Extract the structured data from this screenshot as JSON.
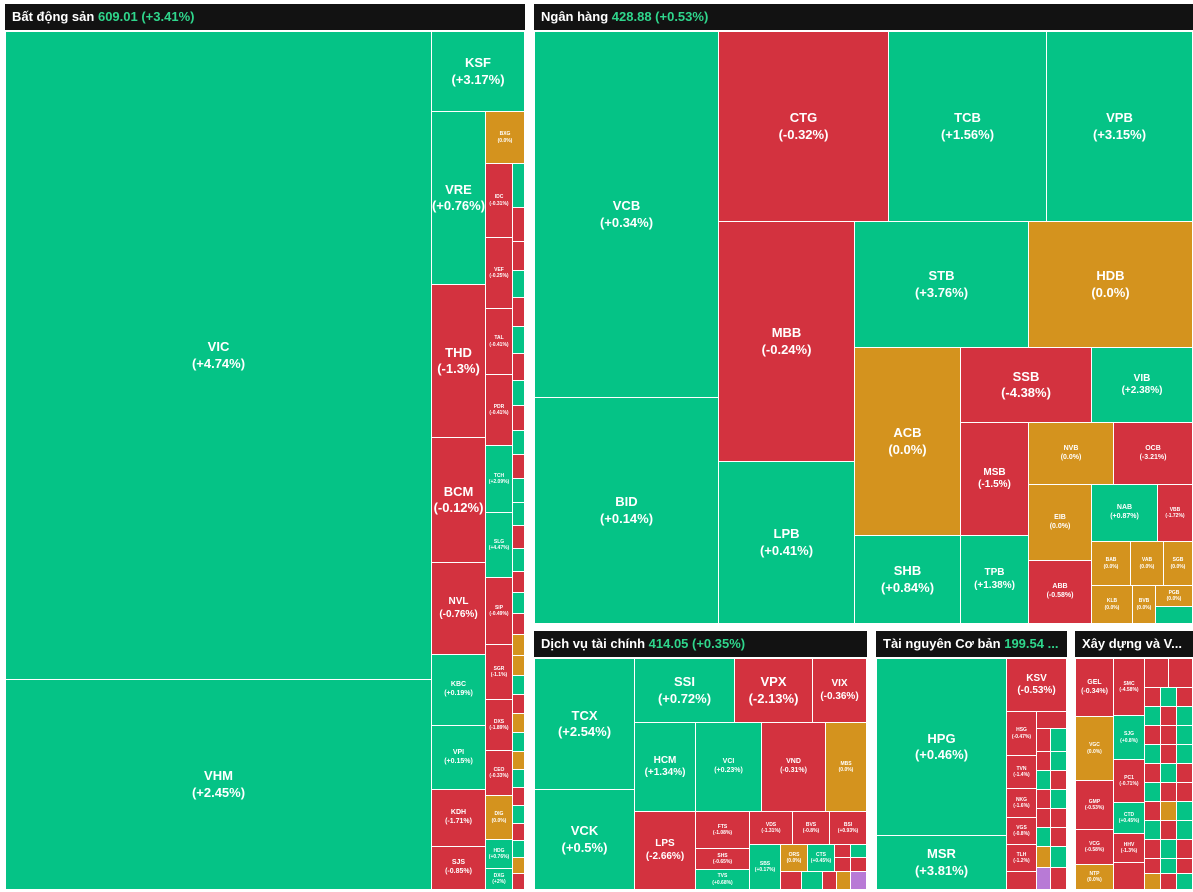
{
  "colors": {
    "up": "#05c386",
    "down": "#d3323f",
    "flat": "#d4931e",
    "header_bg": "#121212",
    "header_value": "#2fd68c"
  },
  "sectors": [
    {
      "name": "Bất động sản",
      "value": "609.01 (+3.41%)"
    },
    {
      "name": "Ngân hàng",
      "value": "428.88 (+0.53%)"
    },
    {
      "name": "Dịch vụ tài chính",
      "value": "414.05 (+0.35%)"
    },
    {
      "name": "Tài nguyên Cơ bản",
      "value": "199.54 ..."
    },
    {
      "name": "Xây dựng và V...",
      "value": ""
    }
  ],
  "tiles": [
    {
      "t": "VIC",
      "p": "(+4.74%)",
      "c": "g"
    },
    {
      "t": "VHM",
      "p": "(+2.45%)",
      "c": "g"
    },
    {
      "t": "KSF",
      "p": "(+3.17%)",
      "c": "g"
    },
    {
      "t": "VRE",
      "p": "(+0.76%)",
      "c": "g"
    },
    {
      "t": "THD",
      "p": "(-1.3%)",
      "c": "r"
    },
    {
      "t": "BCM",
      "p": "(-0.12%)",
      "c": "r"
    },
    {
      "t": "NVL",
      "p": "(-0.76%)",
      "c": "r"
    },
    {
      "t": "KBC",
      "p": "(+0.19%)",
      "c": "g"
    },
    {
      "t": "VPI",
      "p": "(+0.15%)",
      "c": "g"
    },
    {
      "t": "KDH",
      "p": "(-1.71%)",
      "c": "r"
    },
    {
      "t": "SJS",
      "p": "(-0.85%)",
      "c": "r"
    },
    {
      "t": "BXG",
      "p": "(0.0%)",
      "c": "y"
    },
    {
      "t": "IDC",
      "p": "(-0.31%)",
      "c": "r"
    },
    {
      "t": "VEF",
      "p": "(-0.25%)",
      "c": "r"
    },
    {
      "t": "TAL",
      "p": "(-0.41%)",
      "c": "r"
    },
    {
      "t": "PDR",
      "p": "(-0.41%)",
      "c": "r"
    },
    {
      "t": "TCH",
      "p": "(+2.09%)",
      "c": "g"
    },
    {
      "t": "SLG",
      "p": "(+4.47%)",
      "c": "g"
    },
    {
      "t": "SIP",
      "p": "(-0.49%)",
      "c": "r"
    },
    {
      "t": "SGR",
      "p": "(-1.1%)",
      "c": "r"
    },
    {
      "t": "DXS",
      "p": "(-1.89%)",
      "c": "r"
    },
    {
      "t": "CEO",
      "p": "(-0.33%)",
      "c": "r"
    },
    {
      "t": "DIG",
      "p": "(0.0%)",
      "c": "y"
    },
    {
      "t": "HDG",
      "p": "(+0.76%)",
      "c": "g"
    },
    {
      "t": "DXG",
      "p": "(+2%)",
      "c": "g"
    },
    {
      "t": "VCB",
      "p": "(+0.34%)",
      "c": "g"
    },
    {
      "t": "BID",
      "p": "(+0.14%)",
      "c": "g"
    },
    {
      "t": "CTG",
      "p": "(-0.32%)",
      "c": "r"
    },
    {
      "t": "TCB",
      "p": "(+1.56%)",
      "c": "g"
    },
    {
      "t": "VPB",
      "p": "(+3.15%)",
      "c": "g"
    },
    {
      "t": "MBB",
      "p": "(-0.24%)",
      "c": "r"
    },
    {
      "t": "STB",
      "p": "(+3.76%)",
      "c": "g"
    },
    {
      "t": "HDB",
      "p": "(0.0%)",
      "c": "y"
    },
    {
      "t": "LPB",
      "p": "(+0.41%)",
      "c": "g"
    },
    {
      "t": "ACB",
      "p": "(0.0%)",
      "c": "y"
    },
    {
      "t": "SSB",
      "p": "(-4.38%)",
      "c": "r"
    },
    {
      "t": "VIB",
      "p": "(+2.38%)",
      "c": "g"
    },
    {
      "t": "MSB",
      "p": "(-1.5%)",
      "c": "r"
    },
    {
      "t": "NVB",
      "p": "(0.0%)",
      "c": "y"
    },
    {
      "t": "OCB",
      "p": "(-3.21%)",
      "c": "r"
    },
    {
      "t": "EIB",
      "p": "(0.0%)",
      "c": "y"
    },
    {
      "t": "NAB",
      "p": "(+0.87%)",
      "c": "g"
    },
    {
      "t": "VBB",
      "p": "(-1.72%)",
      "c": "r"
    },
    {
      "t": "SHB",
      "p": "(+0.84%)",
      "c": "g"
    },
    {
      "t": "TPB",
      "p": "(+1.38%)",
      "c": "g"
    },
    {
      "t": "ABB",
      "p": "(-0.58%)",
      "c": "r"
    },
    {
      "t": "BAB",
      "p": "(0.0%)",
      "c": "y"
    },
    {
      "t": "VAB",
      "p": "(0.0%)",
      "c": "y"
    },
    {
      "t": "SGB",
      "p": "(0.0%)",
      "c": "y"
    },
    {
      "t": "BVB",
      "p": "(0.0%)",
      "c": "y"
    },
    {
      "t": "KLB",
      "p": "(0.0%)",
      "c": "y"
    },
    {
      "t": "PGB",
      "p": "(0.0%)",
      "c": "y"
    },
    {
      "t": "TCX",
      "p": "(+2.54%)",
      "c": "g"
    },
    {
      "t": "VCK",
      "p": "(+0.5%)",
      "c": "g"
    },
    {
      "t": "SSI",
      "p": "(+0.72%)",
      "c": "g"
    },
    {
      "t": "VPX",
      "p": "(-2.13%)",
      "c": "r"
    },
    {
      "t": "VIX",
      "p": "(-0.36%)",
      "c": "r"
    },
    {
      "t": "HCM",
      "p": "(+1.34%)",
      "c": "g"
    },
    {
      "t": "VCI",
      "p": "(+0.23%)",
      "c": "g"
    },
    {
      "t": "VND",
      "p": "(-0.31%)",
      "c": "r"
    },
    {
      "t": "MBS",
      "p": "(0.0%)",
      "c": "y"
    },
    {
      "t": "LPS",
      "p": "(-2.66%)",
      "c": "r"
    },
    {
      "t": "FTS",
      "p": "(-1.08%)",
      "c": "r"
    },
    {
      "t": "SHS",
      "p": "(-0.65%)",
      "c": "r"
    },
    {
      "t": "TVS",
      "p": "(+0.68%)",
      "c": "g"
    },
    {
      "t": "VDS",
      "p": "(-1.31%)",
      "c": "r"
    },
    {
      "t": "BVS",
      "p": "(-0.8%)",
      "c": "r"
    },
    {
      "t": "BSI",
      "p": "(+0.93%)",
      "c": "g"
    },
    {
      "t": "SBS",
      "p": "(+0.17%)",
      "c": "g"
    },
    {
      "t": "ORS",
      "p": "(0.0%)",
      "c": "y"
    },
    {
      "t": "CTS",
      "p": "(+0.45%)",
      "c": "g"
    },
    {
      "t": "HPG",
      "p": "(+0.46%)",
      "c": "g"
    },
    {
      "t": "MSR",
      "p": "(+3.81%)",
      "c": "g"
    },
    {
      "t": "KSV",
      "p": "(-0.53%)",
      "c": "r"
    },
    {
      "t": "HSG",
      "p": "(-0.47%)",
      "c": "r"
    },
    {
      "t": "TVN",
      "p": "(-1.4%)",
      "c": "r"
    },
    {
      "t": "NKG",
      "p": "(-1.6%)",
      "c": "r"
    },
    {
      "t": "VGS",
      "p": "(-0.8%)",
      "c": "r"
    },
    {
      "t": "TLH",
      "p": "(-1.2%)",
      "c": "r"
    },
    {
      "t": "GEL",
      "p": "(-0.34%)",
      "c": "r"
    },
    {
      "t": "VGC",
      "p": "(0.0%)",
      "c": "y"
    },
    {
      "t": "SMC",
      "p": "(-4.58%)",
      "c": "r"
    },
    {
      "t": "SJG",
      "p": "(+0.8%)",
      "c": "g"
    },
    {
      "t": "PC1",
      "p": "(-0.71%)",
      "c": "r"
    },
    {
      "t": "CTD",
      "p": "(+0.45%)",
      "c": "g"
    },
    {
      "t": "GMP",
      "p": "(-0.53%)",
      "c": "r"
    },
    {
      "t": "VCG",
      "p": "(-0.58%)",
      "c": "r"
    },
    {
      "t": "NTP",
      "p": "(0.0%)",
      "c": "y"
    },
    {
      "t": "HHV",
      "p": "(-1.3%)",
      "c": "r"
    }
  ]
}
